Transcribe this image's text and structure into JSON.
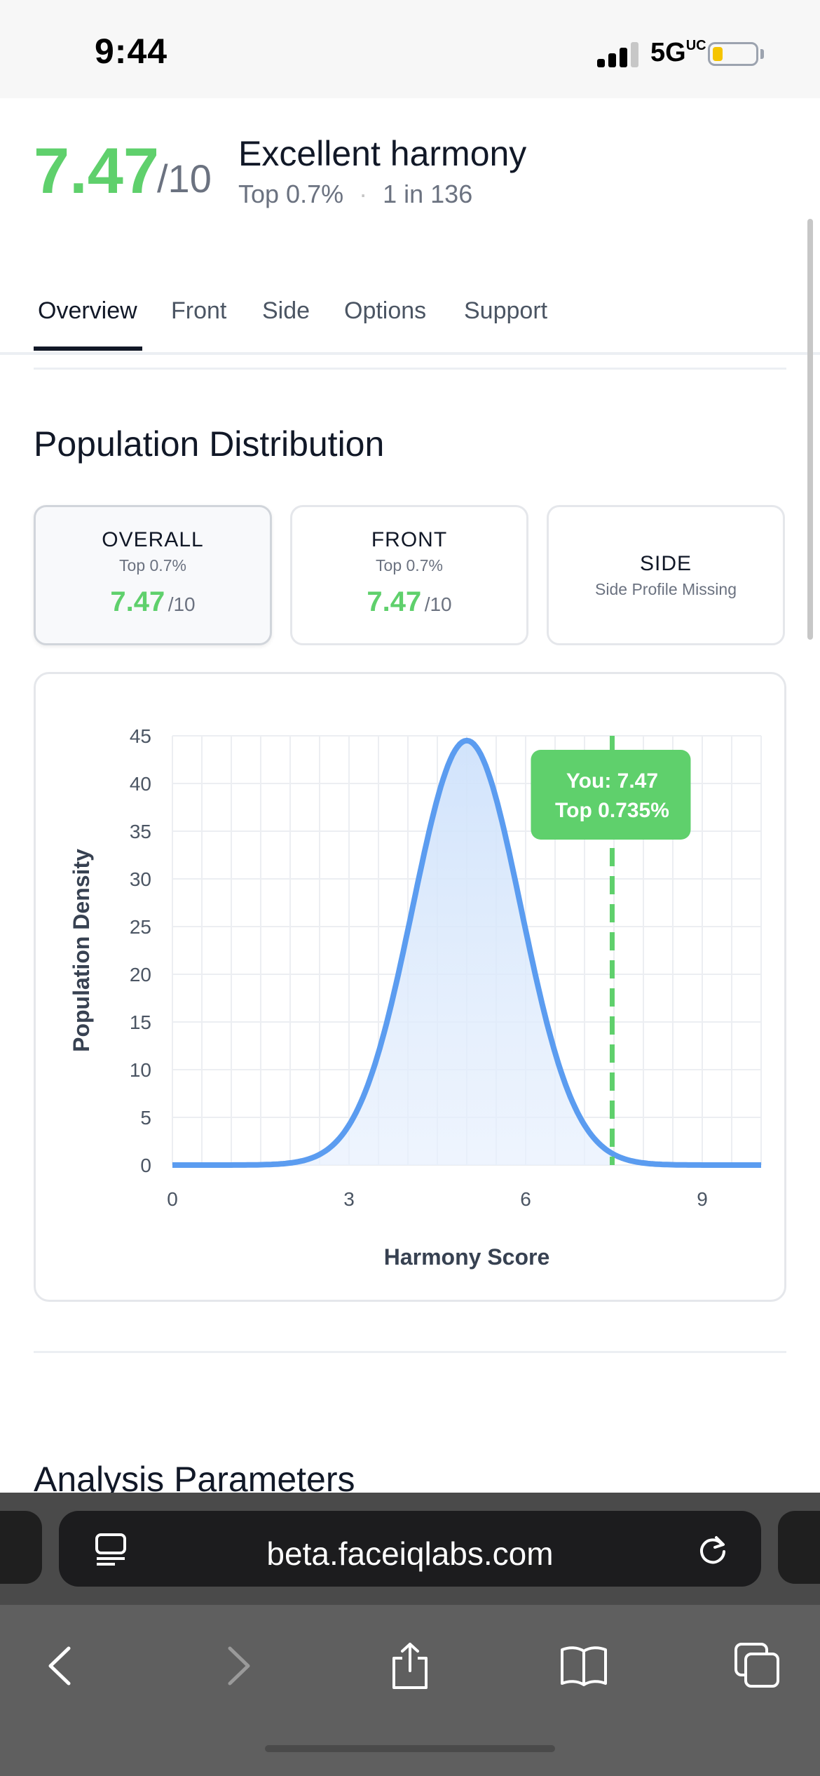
{
  "status_bar": {
    "time": "9:44",
    "network": "5G",
    "network_sub": "UC"
  },
  "score": {
    "value": "7.47",
    "denominator": "/10"
  },
  "summary": {
    "headline": "Excellent harmony",
    "percentile": "Top 0.7%",
    "rarity": "1 in 136"
  },
  "tabs": [
    {
      "label": "Overview",
      "active": true
    },
    {
      "label": "Front"
    },
    {
      "label": "Side"
    },
    {
      "label": "Options"
    },
    {
      "label": "Support"
    }
  ],
  "population_section": {
    "title": "Population Distribution"
  },
  "cards": [
    {
      "title": "OVERALL",
      "subtitle": "Top 0.7%",
      "value": "7.47",
      "denominator": "/10",
      "selected": true
    },
    {
      "title": "FRONT",
      "subtitle": "Top 0.7%",
      "value": "7.47",
      "denominator": "/10"
    },
    {
      "title": "SIDE",
      "subtitle": "Side Profile Missing"
    }
  ],
  "chart_data": {
    "type": "area",
    "xlabel": "Harmony Score",
    "ylabel": "Population Density",
    "xlim": [
      0,
      10
    ],
    "ylim": [
      0,
      45
    ],
    "x_ticks": [
      0,
      3,
      6,
      9
    ],
    "y_ticks": [
      0,
      5,
      10,
      15,
      20,
      25,
      30,
      35,
      40,
      45
    ],
    "grid": true,
    "series": [
      {
        "distribution": "normal",
        "mean": 5.0,
        "sd": 0.92,
        "peak": 44.5,
        "color": "#5b9cf0"
      }
    ],
    "marker": {
      "x": 7.47,
      "label_line1": "You: 7.47",
      "label_line2": "Top 0.735%",
      "color": "#5fd06c"
    }
  },
  "analysis_section": {
    "title": "Analysis Parameters"
  },
  "browser": {
    "url": "beta.faceiqlabs.com"
  },
  "colors": {
    "accent_green": "#5fd06c",
    "curve_blue": "#5b9cf0"
  },
  "icons": [
    "signal-icon",
    "battery-icon",
    "tabs-overview-icon",
    "reload-icon",
    "back-icon",
    "forward-icon",
    "share-icon",
    "bookmarks-icon",
    "tabs-icon"
  ]
}
